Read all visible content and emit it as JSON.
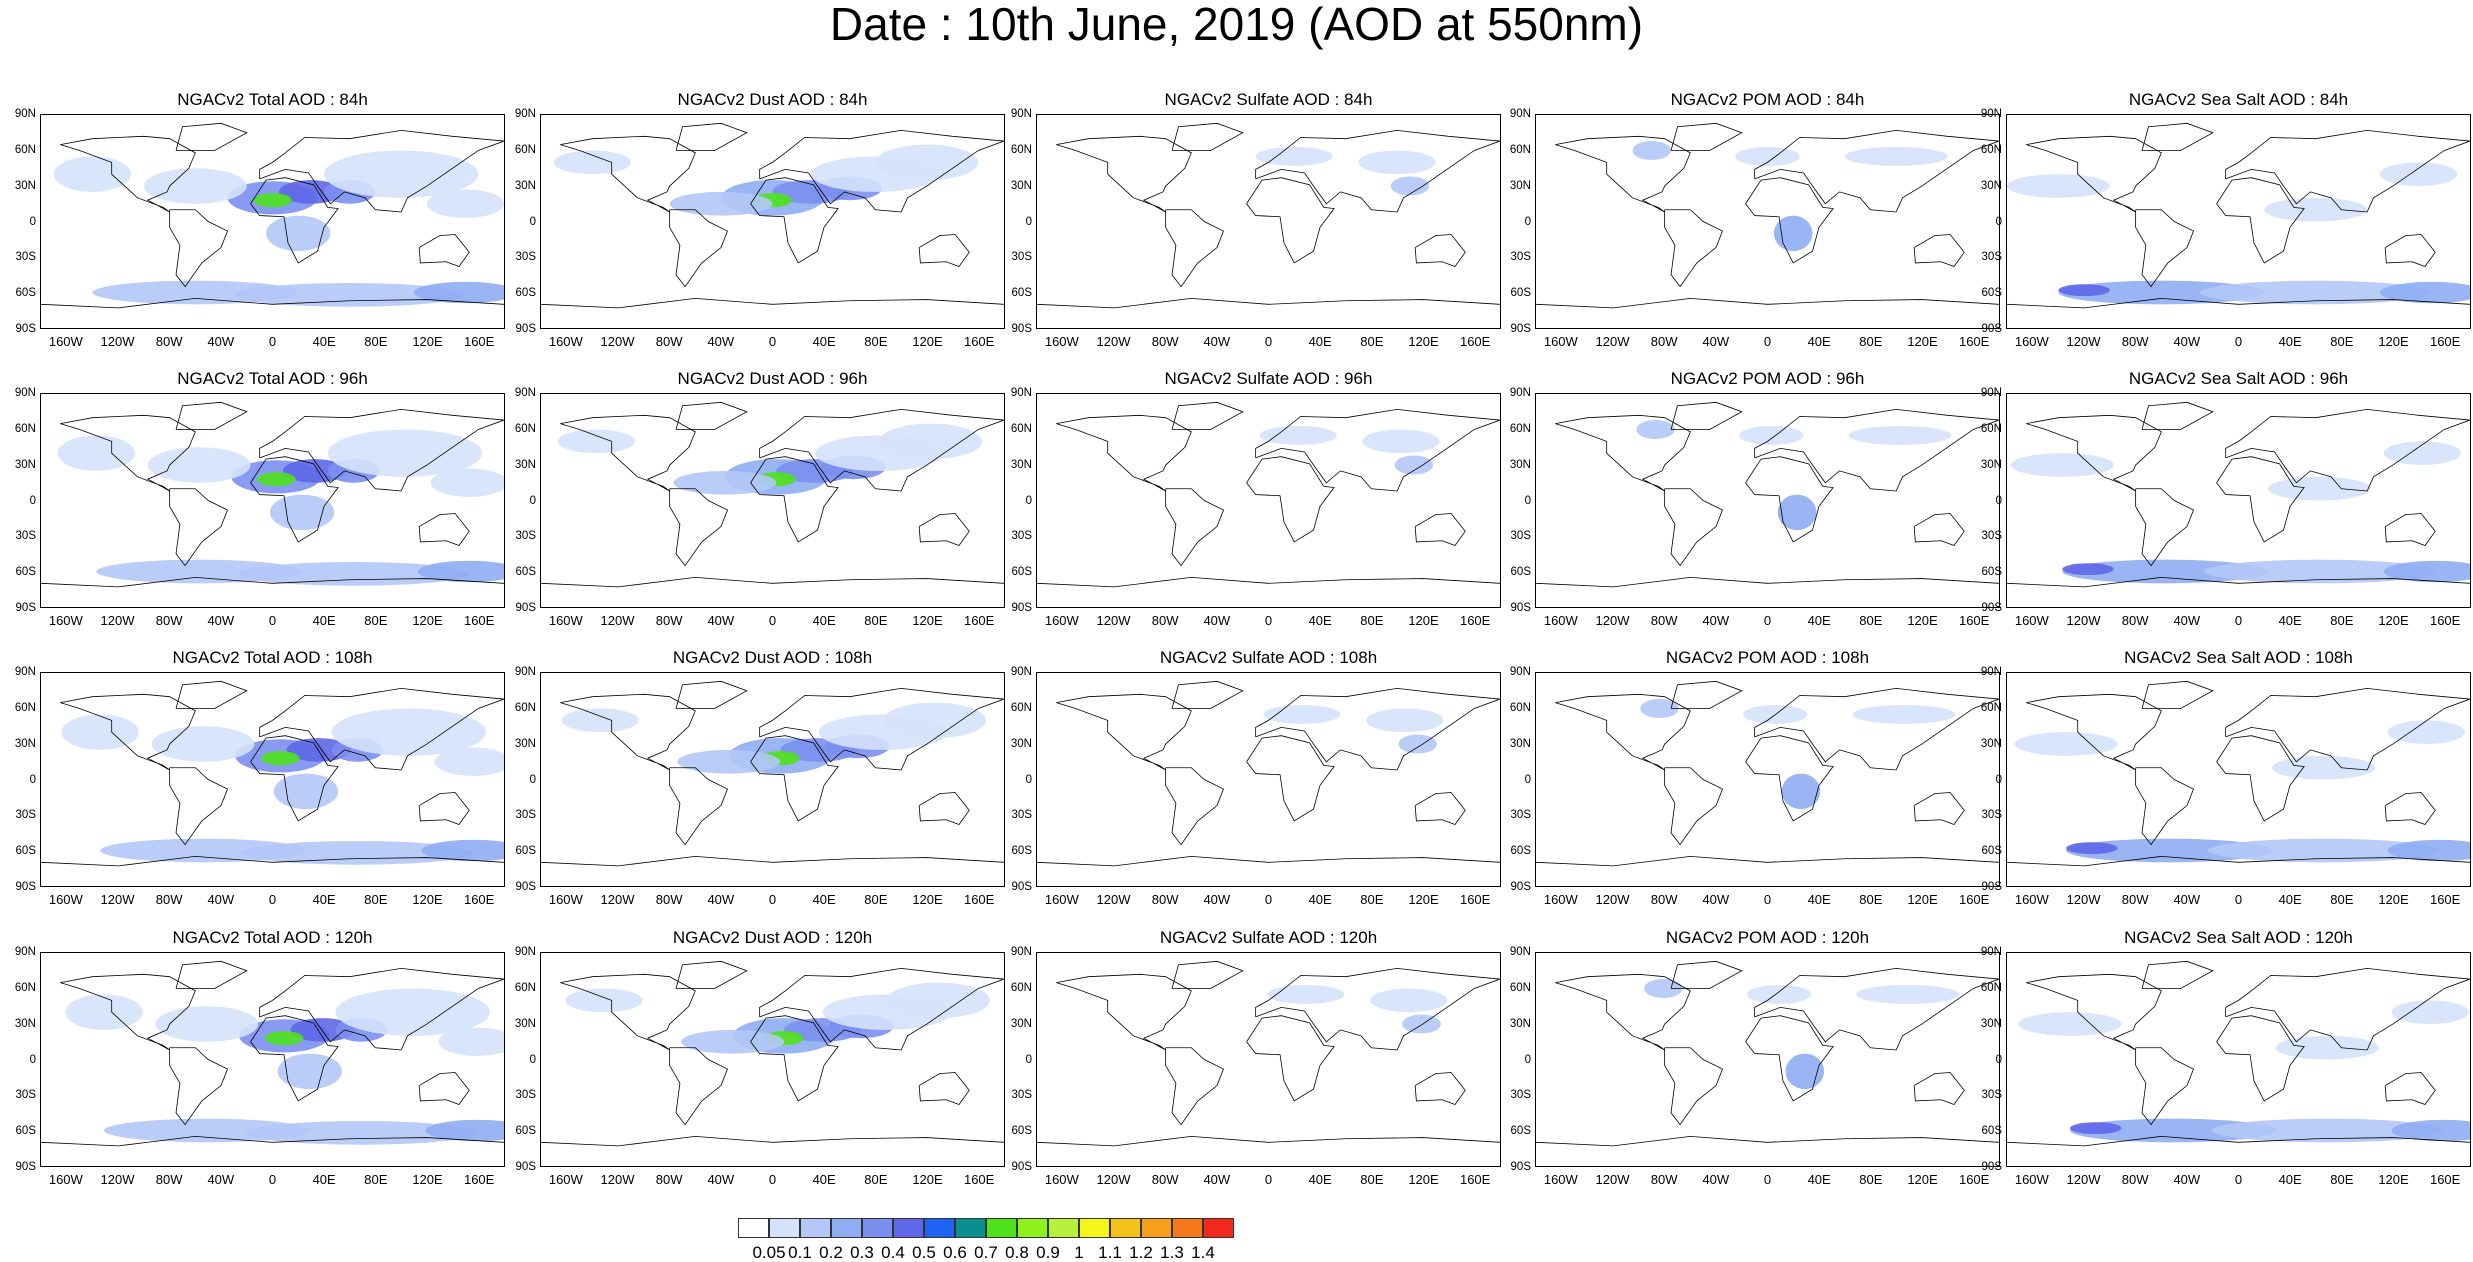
{
  "title": "Date : 10th June, 2019 (AOD at 550nm)",
  "lat_ticks": [
    "90N",
    "60N",
    "30N",
    "0",
    "30S",
    "60S",
    "90S"
  ],
  "lon_ticks": [
    "160W",
    "120W",
    "80W",
    "40W",
    "0",
    "40E",
    "80E",
    "120E",
    "160E"
  ],
  "panels": [
    {
      "title": "NGACv2 Total AOD : 84h",
      "species": "total",
      "hour": 84
    },
    {
      "title": "NGACv2 Dust AOD : 84h",
      "species": "dust",
      "hour": 84
    },
    {
      "title": "NGACv2 Sulfate AOD : 84h",
      "species": "sulfate",
      "hour": 84
    },
    {
      "title": "NGACv2 POM AOD : 84h",
      "species": "pom",
      "hour": 84
    },
    {
      "title": "NGACv2 Sea Salt AOD : 84h",
      "species": "seasalt",
      "hour": 84
    },
    {
      "title": "NGACv2 Total AOD : 96h",
      "species": "total",
      "hour": 96
    },
    {
      "title": "NGACv2 Dust AOD : 96h",
      "species": "dust",
      "hour": 96
    },
    {
      "title": "NGACv2 Sulfate AOD : 96h",
      "species": "sulfate",
      "hour": 96
    },
    {
      "title": "NGACv2 POM AOD : 96h",
      "species": "pom",
      "hour": 96
    },
    {
      "title": "NGACv2 Sea Salt AOD : 96h",
      "species": "seasalt",
      "hour": 96
    },
    {
      "title": "NGACv2 Total AOD : 108h",
      "species": "total",
      "hour": 108
    },
    {
      "title": "NGACv2 Dust AOD : 108h",
      "species": "dust",
      "hour": 108
    },
    {
      "title": "NGACv2 Sulfate AOD : 108h",
      "species": "sulfate",
      "hour": 108
    },
    {
      "title": "NGACv2 POM AOD : 108h",
      "species": "pom",
      "hour": 108
    },
    {
      "title": "NGACv2 Sea Salt AOD : 108h",
      "species": "seasalt",
      "hour": 108
    },
    {
      "title": "NGACv2 Total AOD : 120h",
      "species": "total",
      "hour": 120
    },
    {
      "title": "NGACv2 Dust AOD : 120h",
      "species": "dust",
      "hour": 120
    },
    {
      "title": "NGACv2 Sulfate AOD : 120h",
      "species": "sulfate",
      "hour": 120
    },
    {
      "title": "NGACv2 POM AOD : 120h",
      "species": "pom",
      "hour": 120
    },
    {
      "title": "NGACv2 Sea Salt  AOD : 120h",
      "species": "seasalt",
      "hour": 120
    }
  ],
  "colorbar": {
    "labels": [
      "0.05",
      "0.1",
      "0.2",
      "0.3",
      "0.4",
      "0.5",
      "0.6",
      "0.7",
      "0.8",
      "0.9",
      "1",
      "1.1",
      "1.2",
      "1.3",
      "1.4"
    ],
    "colors": [
      "#ffffff",
      "#d5e2fb",
      "#b3c8f7",
      "#8fadf3",
      "#7b8ff0",
      "#5e67e8",
      "#1f63f2",
      "#0b8f8e",
      "#4fe21a",
      "#8ef21a",
      "#b6f03c",
      "#f5f51a",
      "#f5c21a",
      "#f59f1a",
      "#f5781a",
      "#f2281a"
    ]
  }
}
